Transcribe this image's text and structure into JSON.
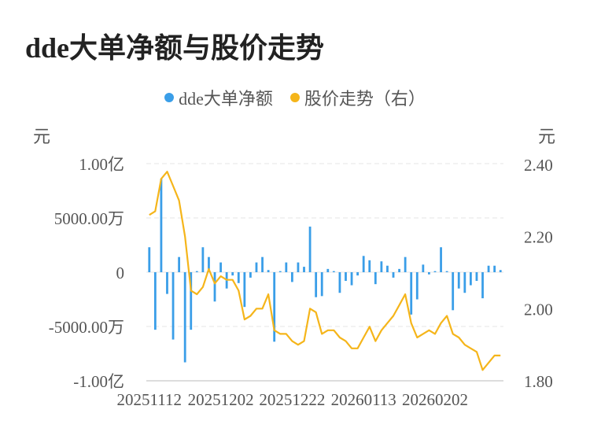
{
  "title": "dde大单净额与股价走势",
  "legend": {
    "left_series": "dde大单净额",
    "right_series": "股价走势（右）"
  },
  "units": {
    "left": "元",
    "right": "元"
  },
  "colors": {
    "bar": "#3a9ee8",
    "line": "#f5b51a",
    "grid": "#e6e6e6",
    "axis": "#bbbbbb"
  },
  "chart_data": {
    "type": "bar+line",
    "title": "dde大单净额与股价走势",
    "x_tick_labels": [
      "20251112",
      "20251202",
      "20251222",
      "20260113",
      "20260202"
    ],
    "left_axis": {
      "unit": "元",
      "ylim": [
        -100000000,
        100000000
      ],
      "ticks": [
        100000000,
        50000000,
        0,
        -50000000,
        -100000000
      ],
      "tick_labels": [
        "1.00亿",
        "5000.00万",
        "0",
        "-5000.00万",
        "-1.00亿"
      ]
    },
    "right_axis": {
      "unit": "元",
      "ylim": [
        1.8,
        2.4
      ],
      "ticks": [
        2.4,
        2.2,
        2.0,
        1.8
      ],
      "tick_labels": [
        "2.40",
        "2.20",
        "2.00",
        "1.80"
      ]
    },
    "series": [
      {
        "name": "dde大单净额",
        "axis": "left",
        "kind": "bar",
        "values": [
          23000000,
          -53000000,
          86000000,
          -20000000,
          -62000000,
          14000000,
          -83000000,
          -53000000,
          1000000,
          23000000,
          14000000,
          -27000000,
          9000000,
          -15000000,
          -3000000,
          -10000000,
          -32000000,
          -5000000,
          9000000,
          14000000,
          2000000,
          -64000000,
          1000000,
          9000000,
          -9000000,
          9000000,
          5000000,
          42000000,
          -23000000,
          -22000000,
          3000000,
          1000000,
          -19000000,
          -8000000,
          -12000000,
          -3000000,
          15000000,
          11000000,
          -11000000,
          10000000,
          6000000,
          -5000000,
          3000000,
          14000000,
          -39000000,
          -25000000,
          7000000,
          -2000000,
          1000000,
          23000000,
          1000000,
          -35000000,
          -15000000,
          -19000000,
          -12000000,
          -8000000,
          -24000000,
          6000000,
          6000000,
          2000000
        ]
      },
      {
        "name": "股价走势（右）",
        "axis": "right",
        "kind": "line",
        "values": [
          2.26,
          2.27,
          2.36,
          2.38,
          2.34,
          2.3,
          2.2,
          2.05,
          2.04,
          2.06,
          2.11,
          2.07,
          2.09,
          2.08,
          2.08,
          2.05,
          1.97,
          1.98,
          2.0,
          2.0,
          2.04,
          1.94,
          1.93,
          1.93,
          1.91,
          1.9,
          1.91,
          2.0,
          1.99,
          1.93,
          1.94,
          1.94,
          1.92,
          1.91,
          1.89,
          1.89,
          1.92,
          1.95,
          1.91,
          1.94,
          1.96,
          1.98,
          2.01,
          2.04,
          1.96,
          1.92,
          1.93,
          1.94,
          1.93,
          1.96,
          1.98,
          1.93,
          1.92,
          1.9,
          1.89,
          1.88,
          1.83,
          1.85,
          1.87,
          1.87
        ]
      }
    ],
    "grid": true,
    "legend_position": "top-center"
  }
}
